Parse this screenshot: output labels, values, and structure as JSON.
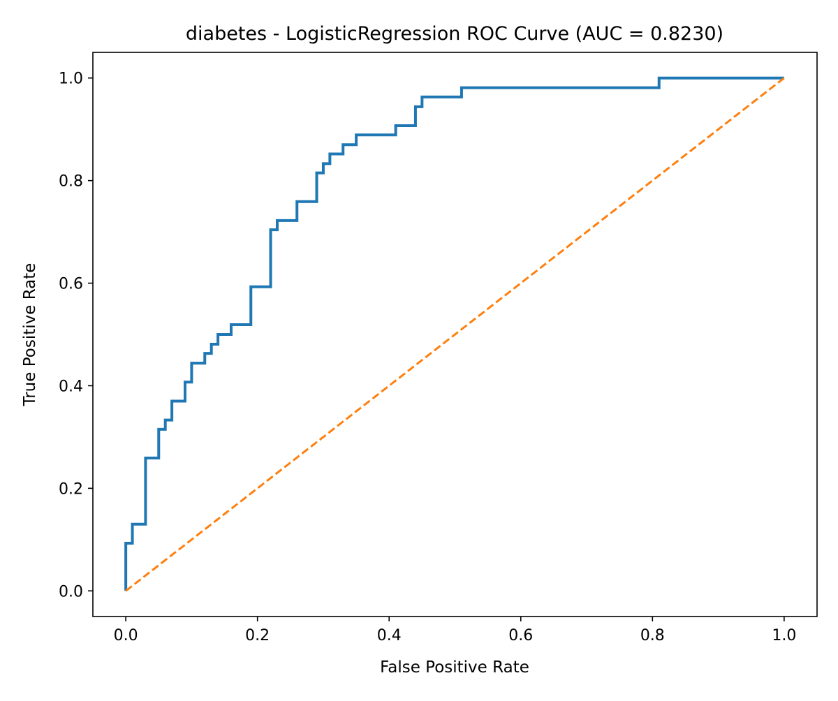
{
  "chart_data": {
    "type": "line",
    "title": "diabetes - LogisticRegression ROC Curve (AUC = 0.8230)",
    "xlabel": "False Positive Rate",
    "ylabel": "True Positive Rate",
    "xlim": [
      -0.05,
      1.05
    ],
    "ylim": [
      -0.05,
      1.05
    ],
    "grid": false,
    "legend": "none",
    "x_ticks": [
      0.0,
      0.2,
      0.4,
      0.6,
      0.8,
      1.0
    ],
    "x_tick_labels": [
      "0.0",
      "0.2",
      "0.4",
      "0.6",
      "0.8",
      "1.0"
    ],
    "y_ticks": [
      0.0,
      0.2,
      0.4,
      0.6,
      0.8,
      1.0
    ],
    "y_tick_labels": [
      "0.0",
      "0.2",
      "0.4",
      "0.6",
      "0.8",
      "1.0"
    ],
    "series": [
      {
        "color": "#1f77b4",
        "style": "solid",
        "x": [
          0.0,
          0.0,
          0.01,
          0.01,
          0.03,
          0.03,
          0.05,
          0.05,
          0.06,
          0.06,
          0.07,
          0.07,
          0.09,
          0.09,
          0.1,
          0.1,
          0.12,
          0.12,
          0.13,
          0.13,
          0.14,
          0.14,
          0.16,
          0.16,
          0.19,
          0.19,
          0.22,
          0.22,
          0.23,
          0.23,
          0.26,
          0.26,
          0.29,
          0.29,
          0.3,
          0.3,
          0.31,
          0.31,
          0.33,
          0.33,
          0.35,
          0.35,
          0.41,
          0.41,
          0.44,
          0.44,
          0.45,
          0.45,
          0.51,
          0.51,
          0.81,
          0.81,
          1.0
        ],
        "y": [
          0.0,
          0.093,
          0.093,
          0.13,
          0.13,
          0.259,
          0.259,
          0.315,
          0.315,
          0.333,
          0.333,
          0.37,
          0.37,
          0.407,
          0.407,
          0.444,
          0.444,
          0.463,
          0.463,
          0.481,
          0.481,
          0.5,
          0.5,
          0.519,
          0.519,
          0.593,
          0.593,
          0.704,
          0.704,
          0.722,
          0.722,
          0.759,
          0.759,
          0.815,
          0.815,
          0.833,
          0.833,
          0.852,
          0.852,
          0.87,
          0.87,
          0.889,
          0.889,
          0.907,
          0.907,
          0.944,
          0.944,
          0.963,
          0.963,
          0.981,
          0.981,
          1.0,
          1.0
        ]
      },
      {
        "color": "#ff7f0e",
        "style": "dashed",
        "x": [
          0.0,
          1.0
        ],
        "y": [
          0.0,
          1.0
        ]
      }
    ]
  }
}
